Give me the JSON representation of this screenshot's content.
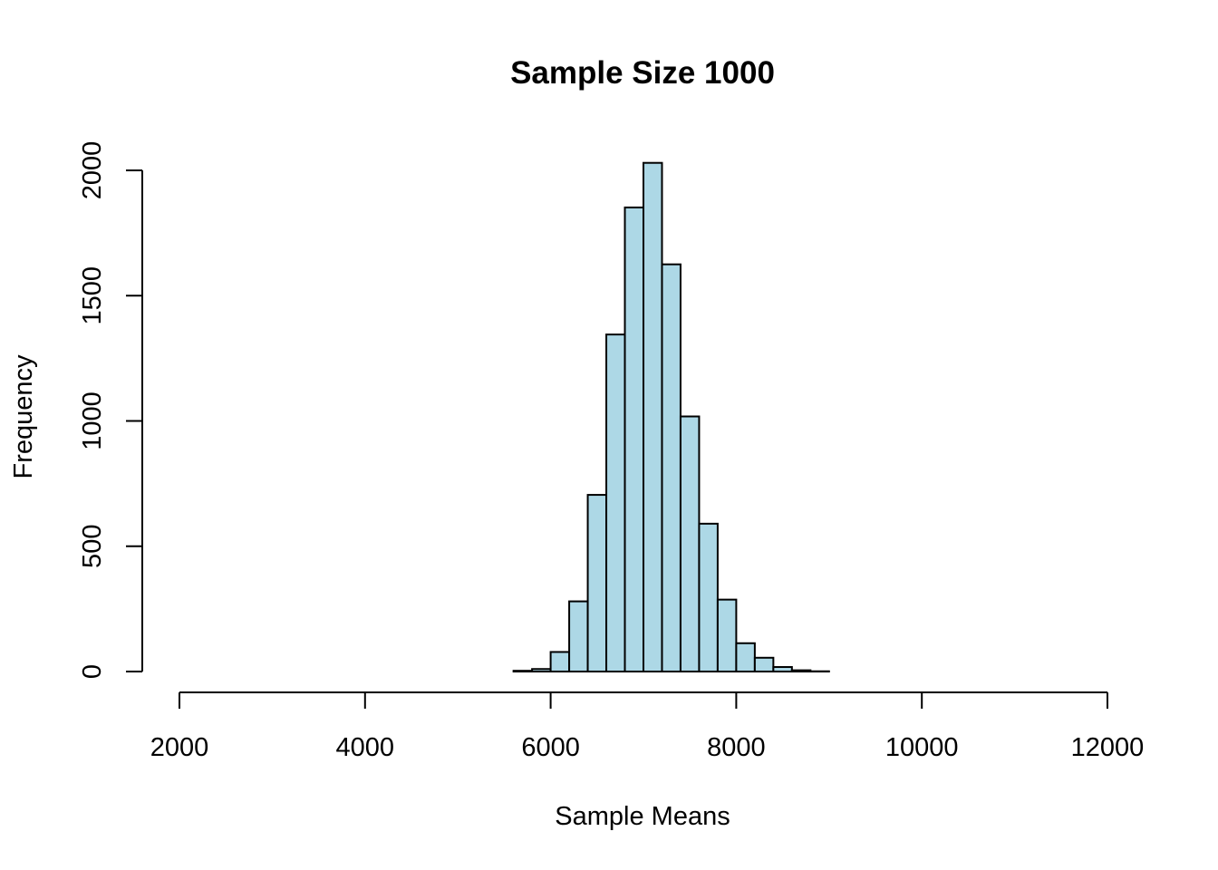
{
  "chart_data": {
    "type": "bar",
    "title": "Sample Size 1000",
    "xlabel": "Sample Means",
    "ylabel": "Frequency",
    "xlim": [
      2000,
      12000
    ],
    "ylim": [
      0,
      2000
    ],
    "x_ticks": [
      "2000",
      "4000",
      "6000",
      "8000",
      "10000",
      "12000"
    ],
    "y_ticks": [
      "0",
      "500",
      "1000",
      "1500",
      "2000"
    ],
    "bin_width": 200,
    "bins": [
      {
        "start": 5600,
        "end": 5800,
        "count": 3
      },
      {
        "start": 5800,
        "end": 6000,
        "count": 10
      },
      {
        "start": 6000,
        "end": 6200,
        "count": 78
      },
      {
        "start": 6200,
        "end": 6400,
        "count": 280
      },
      {
        "start": 6400,
        "end": 6600,
        "count": 705
      },
      {
        "start": 6600,
        "end": 6800,
        "count": 1345
      },
      {
        "start": 6800,
        "end": 7000,
        "count": 1852
      },
      {
        "start": 7000,
        "end": 7200,
        "count": 2030
      },
      {
        "start": 7200,
        "end": 7400,
        "count": 1625
      },
      {
        "start": 7400,
        "end": 7600,
        "count": 1018
      },
      {
        "start": 7600,
        "end": 7800,
        "count": 590
      },
      {
        "start": 7800,
        "end": 8000,
        "count": 287
      },
      {
        "start": 8000,
        "end": 8200,
        "count": 113
      },
      {
        "start": 8200,
        "end": 8400,
        "count": 55
      },
      {
        "start": 8400,
        "end": 8600,
        "count": 18
      },
      {
        "start": 8600,
        "end": 8800,
        "count": 5
      },
      {
        "start": 8800,
        "end": 9000,
        "count": 1
      }
    ],
    "bar_fill": "#add8e6",
    "bar_stroke": "#000000",
    "grid": false,
    "legend": "none"
  }
}
